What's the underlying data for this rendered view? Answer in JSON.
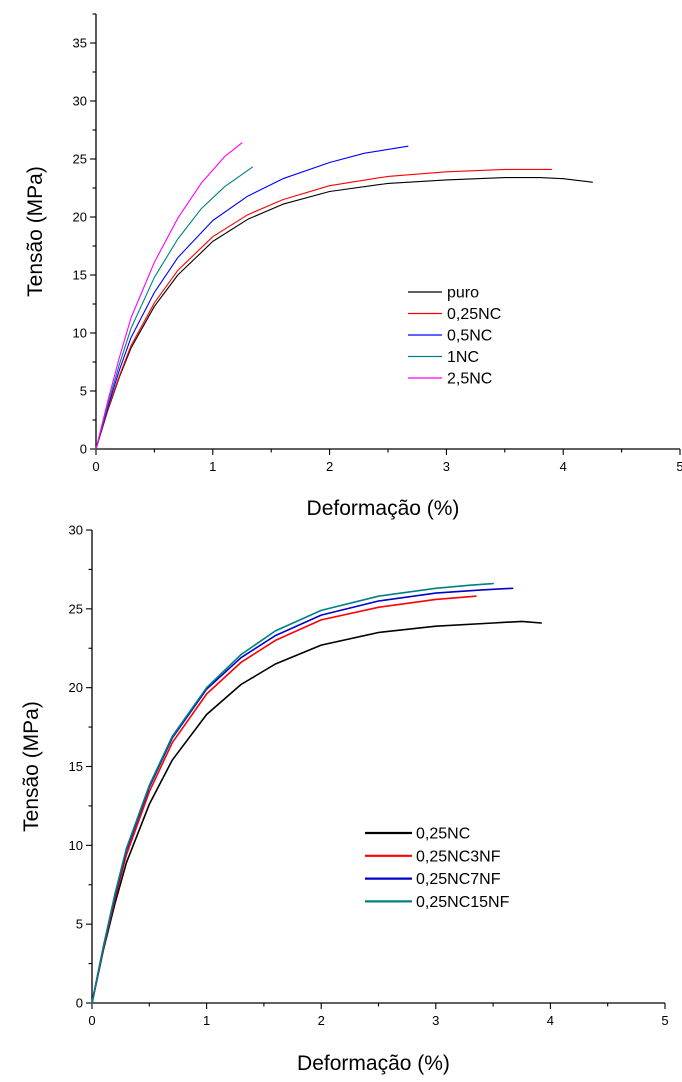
{
  "chart_data": [
    {
      "type": "line",
      "xlabel": "Deformação (%)",
      "ylabel": "Tensão (MPa)",
      "xlim": [
        0,
        5
      ],
      "ylim": [
        0,
        37.5
      ],
      "xticks": [
        "0",
        "1",
        "2",
        "3",
        "4",
        "5"
      ],
      "yticks": [
        "0",
        "5",
        "10",
        "15",
        "20",
        "25",
        "30",
        "35"
      ],
      "legend_position": "center-right",
      "series": [
        {
          "name": "puro",
          "color": "#000000",
          "x": [
            0,
            0.1,
            0.2,
            0.3,
            0.5,
            0.7,
            1.0,
            1.3,
            1.6,
            2.0,
            2.5,
            3.0,
            3.5,
            3.8,
            4.0,
            4.25
          ],
          "y": [
            0,
            3.3,
            6.2,
            8.7,
            12.3,
            15.0,
            17.9,
            19.8,
            21.1,
            22.2,
            22.9,
            23.2,
            23.4,
            23.4,
            23.3,
            23.0
          ]
        },
        {
          "name": "0,25NC",
          "color": "#ff0000",
          "x": [
            0,
            0.1,
            0.2,
            0.3,
            0.5,
            0.7,
            1.0,
            1.3,
            1.6,
            2.0,
            2.5,
            3.0,
            3.5,
            3.9
          ],
          "y": [
            0,
            3.4,
            6.3,
            8.9,
            12.6,
            15.4,
            18.3,
            20.2,
            21.5,
            22.7,
            23.5,
            23.9,
            24.1,
            24.1
          ]
        },
        {
          "name": "0,5NC",
          "color": "#0000ff",
          "x": [
            0,
            0.1,
            0.2,
            0.3,
            0.5,
            0.7,
            1.0,
            1.3,
            1.6,
            2.0,
            2.3,
            2.67
          ],
          "y": [
            0,
            3.6,
            6.8,
            9.6,
            13.5,
            16.5,
            19.7,
            21.8,
            23.3,
            24.7,
            25.5,
            26.1
          ]
        },
        {
          "name": "1NC",
          "color": "#008080",
          "x": [
            0,
            0.1,
            0.2,
            0.3,
            0.5,
            0.7,
            0.9,
            1.1,
            1.34
          ],
          "y": [
            0,
            3.8,
            7.3,
            10.4,
            14.8,
            18.1,
            20.7,
            22.6,
            24.3
          ]
        },
        {
          "name": "2,5NC",
          "color": "#ff00ff",
          "x": [
            0,
            0.1,
            0.2,
            0.3,
            0.5,
            0.7,
            0.9,
            1.1,
            1.25
          ],
          "y": [
            0,
            4.1,
            7.9,
            11.3,
            16.1,
            19.9,
            22.9,
            25.2,
            26.4
          ]
        }
      ]
    },
    {
      "type": "line",
      "xlabel": "Deformação (%)",
      "ylabel": "Tensão (MPa)",
      "xlim": [
        0,
        5
      ],
      "ylim": [
        0,
        30
      ],
      "xticks": [
        "0",
        "1",
        "2",
        "3",
        "4",
        "5"
      ],
      "yticks": [
        "0",
        "5",
        "10",
        "15",
        "20",
        "25",
        "30"
      ],
      "legend_position": "center-right",
      "series": [
        {
          "name": "0,25NC",
          "color": "#000000",
          "x": [
            0,
            0.1,
            0.2,
            0.3,
            0.5,
            0.7,
            1.0,
            1.3,
            1.6,
            2.0,
            2.5,
            3.0,
            3.5,
            3.75,
            3.92
          ],
          "y": [
            0,
            3.4,
            6.3,
            8.9,
            12.6,
            15.4,
            18.3,
            20.2,
            21.5,
            22.7,
            23.5,
            23.9,
            24.1,
            24.2,
            24.1
          ]
        },
        {
          "name": "0,25NC3NF",
          "color": "#ff0000",
          "x": [
            0,
            0.1,
            0.2,
            0.3,
            0.5,
            0.7,
            1.0,
            1.3,
            1.6,
            2.0,
            2.5,
            3.0,
            3.35
          ],
          "y": [
            0,
            3.5,
            6.6,
            9.4,
            13.4,
            16.5,
            19.6,
            21.6,
            23.0,
            24.3,
            25.1,
            25.6,
            25.8
          ]
        },
        {
          "name": "0,25NC7NF",
          "color": "#0000cc",
          "x": [
            0,
            0.1,
            0.2,
            0.3,
            0.5,
            0.7,
            1.0,
            1.3,
            1.6,
            2.0,
            2.5,
            3.0,
            3.4,
            3.67
          ],
          "y": [
            0,
            3.6,
            6.8,
            9.7,
            13.7,
            16.8,
            19.9,
            21.9,
            23.3,
            24.6,
            25.5,
            26.0,
            26.2,
            26.3
          ]
        },
        {
          "name": "0,25NC15NF",
          "color": "#008080",
          "x": [
            0,
            0.1,
            0.2,
            0.3,
            0.5,
            0.7,
            1.0,
            1.3,
            1.6,
            2.0,
            2.5,
            3.0,
            3.3,
            3.5
          ],
          "y": [
            0,
            3.6,
            6.9,
            9.8,
            13.8,
            16.9,
            20.0,
            22.1,
            23.6,
            24.9,
            25.8,
            26.3,
            26.5,
            26.6
          ]
        }
      ]
    }
  ]
}
